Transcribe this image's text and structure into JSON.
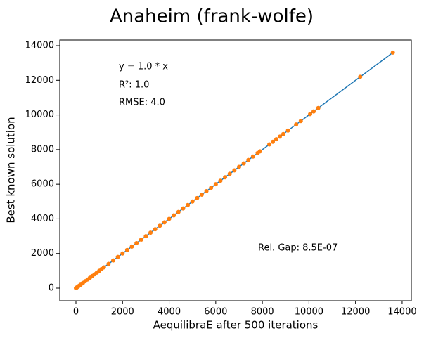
{
  "chart_data": {
    "type": "scatter",
    "title": "Anaheim (frank-wolfe)",
    "xlabel": "AequilibraE after 500 iterations",
    "ylabel": "Best known solution",
    "annotations": [
      "y = 1.0 * x",
      "R²:  1.0",
      "RMSE: 4.0",
      "Rel. Gap: 8.5E-07"
    ],
    "xlim": [
      -694,
      14394
    ],
    "ylim": [
      -730,
      14325
    ],
    "xticks": [
      0,
      2000,
      4000,
      6000,
      8000,
      10000,
      12000,
      14000
    ],
    "yticks": [
      0,
      2000,
      4000,
      6000,
      8000,
      10000,
      12000,
      14000
    ],
    "fit_line": {
      "color": "#1f77b4",
      "x": [
        0,
        13600
      ],
      "y": [
        0,
        13600
      ]
    },
    "series": [
      {
        "color": "#ff7f0e",
        "x": [
          0,
          20,
          50,
          100,
          150,
          200,
          300,
          400,
          500,
          600,
          700,
          800,
          900,
          1000,
          1100,
          1200,
          1400,
          1600,
          1800,
          2000,
          2200,
          2400,
          2600,
          2800,
          3000,
          3200,
          3400,
          3600,
          3800,
          4000,
          4200,
          4400,
          4600,
          4800,
          5000,
          5200,
          5400,
          5600,
          5800,
          6000,
          6200,
          6400,
          6600,
          6800,
          7000,
          7200,
          7400,
          7600,
          7800,
          7900,
          8300,
          8450,
          8600,
          8750,
          8900,
          9100,
          9450,
          9650,
          10050,
          10200,
          10400,
          12200,
          13600
        ],
        "y": [
          0,
          20,
          50,
          100,
          150,
          200,
          300,
          400,
          500,
          600,
          700,
          800,
          900,
          1000,
          1100,
          1200,
          1400,
          1600,
          1800,
          2000,
          2200,
          2400,
          2600,
          2800,
          3000,
          3200,
          3400,
          3600,
          3800,
          4000,
          4200,
          4400,
          4600,
          4800,
          5000,
          5200,
          5400,
          5600,
          5800,
          6000,
          6200,
          6400,
          6600,
          6800,
          7000,
          7200,
          7400,
          7600,
          7800,
          7900,
          8300,
          8450,
          8600,
          8750,
          8900,
          9100,
          9450,
          9650,
          10050,
          10200,
          10400,
          12200,
          13600
        ]
      }
    ]
  }
}
